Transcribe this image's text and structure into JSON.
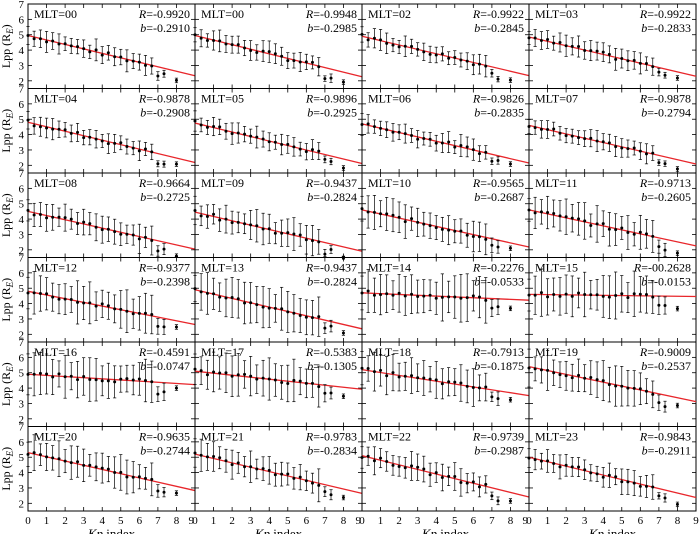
{
  "figure": {
    "x_axis_label_prefix": "Kp",
    "x_axis_label_suffix": " index",
    "y_axis_label_prefix": "Lpp (R",
    "y_axis_label_sub": "E",
    "y_axis_label_suffix": ")",
    "r_label": "R",
    "b_label": "b",
    "fit_line_color": "#e8262b",
    "point_color": "#000000"
  },
  "chart_data": {
    "type": "scatter",
    "layout": "6x4 panel grid of scatter plots with error bars and linear fits",
    "xlim": [
      0,
      9
    ],
    "ylim": [
      1.5,
      7
    ],
    "x_ticks": [
      "0",
      "1",
      "2",
      "3",
      "4",
      "5",
      "6",
      "7",
      "8",
      "9"
    ],
    "x_ticks_last_col": [
      "0",
      "1",
      "2",
      "3",
      "4",
      "5",
      "6",
      "7",
      "8",
      "9"
    ],
    "y_ticks": [
      "2",
      "3",
      "4",
      "5",
      "6",
      "7"
    ],
    "xlabel": "Kp index",
    "ylabel": "Lpp (RE)",
    "kp_values": [
      0,
      0.33,
      0.67,
      1,
      1.33,
      1.67,
      2,
      2.33,
      2.67,
      3,
      3.33,
      3.67,
      4,
      4.33,
      4.67,
      5,
      5.33,
      5.67,
      6,
      6.33,
      6.67,
      7,
      7.33,
      8
    ],
    "panels": [
      {
        "label": "MLT=00",
        "r": "=-0.9920",
        "b": "=-0.2910",
        "a": 4.95,
        "slope": -0.291,
        "err": 0.6
      },
      {
        "label": "MLT=00",
        "r": "=-0.9948",
        "b": "=-0.2985",
        "a": 4.95,
        "slope": -0.2985,
        "err": 0.6
      },
      {
        "label": "MLT=02",
        "r": "=-0.9922",
        "b": "=-0.2845",
        "a": 4.9,
        "slope": -0.2845,
        "err": 0.6
      },
      {
        "label": "MLT=03",
        "r": "=-0.9922",
        "b": "=-0.2833",
        "a": 4.85,
        "slope": -0.2833,
        "err": 0.6
      },
      {
        "label": "MLT=04",
        "r": "=-0.9878",
        "b": "=-0.2908",
        "a": 4.8,
        "slope": -0.2908,
        "err": 0.6
      },
      {
        "label": "MLT=05",
        "r": "=-0.9896",
        "b": "=-0.2925",
        "a": 4.75,
        "slope": -0.2925,
        "err": 0.6
      },
      {
        "label": "MLT=06",
        "r": "=-0.9826",
        "b": "=-0.2835",
        "a": 4.7,
        "slope": -0.2835,
        "err": 0.6
      },
      {
        "label": "MLT=07",
        "r": "=-0.9878",
        "b": "=-0.2794",
        "a": 4.6,
        "slope": -0.2794,
        "err": 0.6
      },
      {
        "label": "MLT=08",
        "r": "=-0.9664",
        "b": "=-0.2725",
        "a": 4.5,
        "slope": -0.2725,
        "err": 0.8
      },
      {
        "label": "MLT=09",
        "r": "=-0.9437",
        "b": "=-0.2824",
        "a": 4.45,
        "slope": -0.2824,
        "err": 0.9
      },
      {
        "label": "MLT=10",
        "r": "=-0.9565",
        "b": "=-0.2687",
        "a": 4.6,
        "slope": -0.2687,
        "err": 1.0
      },
      {
        "label": "MLT=11",
        "r": "=-0.9713",
        "b": "=-0.2605",
        "a": 4.6,
        "slope": -0.2605,
        "err": 1.0
      },
      {
        "label": "MLT=12",
        "r": "=-0.9377",
        "b": "=-0.2398",
        "a": 4.8,
        "slope": -0.2398,
        "err": 1.2
      },
      {
        "label": "MLT=13",
        "r": "=-0.9437",
        "b": "=-0.2824",
        "a": 4.9,
        "slope": -0.2824,
        "err": 1.2
      },
      {
        "label": "MLT=14",
        "r": "=-0.2276",
        "b": "=-0.0533",
        "a": 4.7,
        "slope": -0.0533,
        "err": 1.3
      },
      {
        "label": "MLT=15",
        "r": "=-00.2628",
        "b": "=-0.0153",
        "a": 4.6,
        "slope": -0.0153,
        "err": 1.3
      },
      {
        "label": "MLT=16",
        "r": "=-0.4591",
        "b": "=-0.0747",
        "a": 4.9,
        "slope": -0.0747,
        "err": 1.2
      },
      {
        "label": "MLT=17",
        "r": "=-0.5383",
        "b": "=-0.1305",
        "a": 5.1,
        "slope": -0.1305,
        "err": 1.2
      },
      {
        "label": "MLT=18",
        "r": "=-0.7913",
        "b": "=-0.1875",
        "a": 5.2,
        "slope": -0.1875,
        "err": 1.1
      },
      {
        "label": "MLT=19",
        "r": "=-0.9009",
        "b": "=-0.2537",
        "a": 5.4,
        "slope": -0.2537,
        "err": 1.1
      },
      {
        "label": "MLT=20",
        "r": "=-0.9635",
        "b": "=-0.2744",
        "a": 5.3,
        "slope": -0.2744,
        "err": 1.0
      },
      {
        "label": "MLT=21",
        "r": "=-0.9783",
        "b": "=-0.2834",
        "a": 5.2,
        "slope": -0.2834,
        "err": 0.9
      },
      {
        "label": "MLT=22",
        "r": "=-0.9739",
        "b": "=-0.2987",
        "a": 5.1,
        "slope": -0.2987,
        "err": 0.8
      },
      {
        "label": "MLT=23",
        "r": "=-0.9843",
        "b": "=-0.2911",
        "a": 5.0,
        "slope": -0.2911,
        "err": 0.7
      }
    ]
  }
}
